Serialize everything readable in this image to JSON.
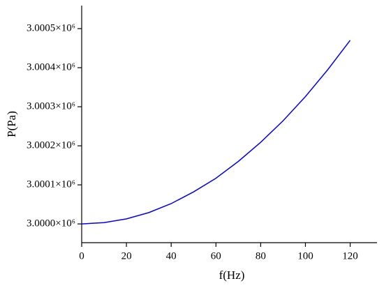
{
  "chart_data": {
    "type": "line",
    "x_label": "f(Hz)",
    "y_label": "P(Pa)",
    "x": [
      0,
      10,
      20,
      30,
      40,
      50,
      60,
      70,
      80,
      90,
      100,
      110,
      120
    ],
    "series": [
      {
        "name": "P",
        "color": "#0000ff",
        "values": [
          3000000,
          3000003.3,
          3000013,
          3000029,
          3000052,
          3000082,
          3000117,
          3000160,
          3000209,
          3000264,
          3000326,
          3000395,
          3000470
        ]
      }
    ],
    "xlim": [
      0,
      132
    ],
    "xticks": [
      0,
      20,
      40,
      60,
      80,
      100,
      120
    ],
    "ylim": [
      2999952,
      3000559
    ],
    "yticks": [
      {
        "value": 3000000,
        "label": "3.0000×10⁶"
      },
      {
        "value": 3000100,
        "label": "3.0001×10⁶"
      },
      {
        "value": 3000200,
        "label": "3.0002×10⁶"
      },
      {
        "value": 3000300,
        "label": "3.0003×10⁶"
      },
      {
        "value": 3000400,
        "label": "3.0004×10⁶"
      },
      {
        "value": 3000500,
        "label": "3.0005×10⁶"
      }
    ]
  }
}
